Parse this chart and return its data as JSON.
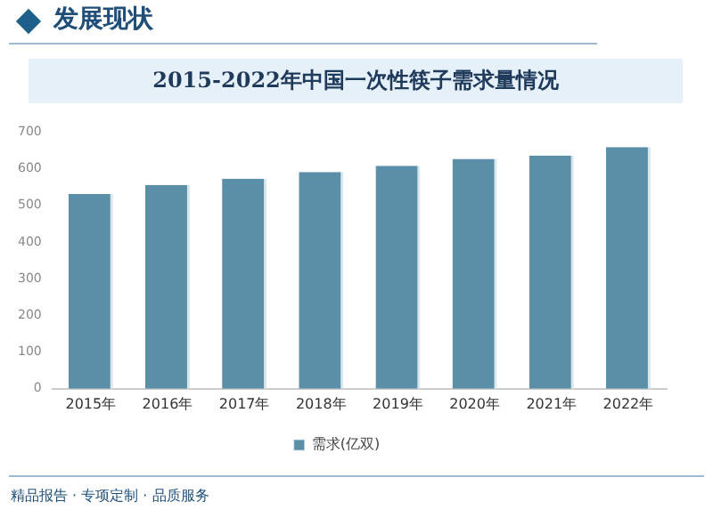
{
  "chart_data": {
    "type": "bar",
    "title": "2015-2022年中国一次性筷子需求量情况",
    "annotations": [
      "发展现状",
      "精品报告 · 专项定制 · 品质服务"
    ],
    "categories": [
      "2015年",
      "2016年",
      "2017年",
      "2018年",
      "2019年",
      "2020年",
      "2021年",
      "2022年"
    ],
    "series": [
      {
        "name": "需求(亿双)",
        "color": "#5b8fa8",
        "values": [
          531,
          556,
          573,
          591,
          608,
          627,
          636,
          659
        ]
      }
    ],
    "ylim": [
      0,
      700
    ],
    "yticks": [
      0,
      100,
      200,
      300,
      400,
      500,
      600,
      700
    ],
    "grid": false,
    "legend": "bottom"
  }
}
